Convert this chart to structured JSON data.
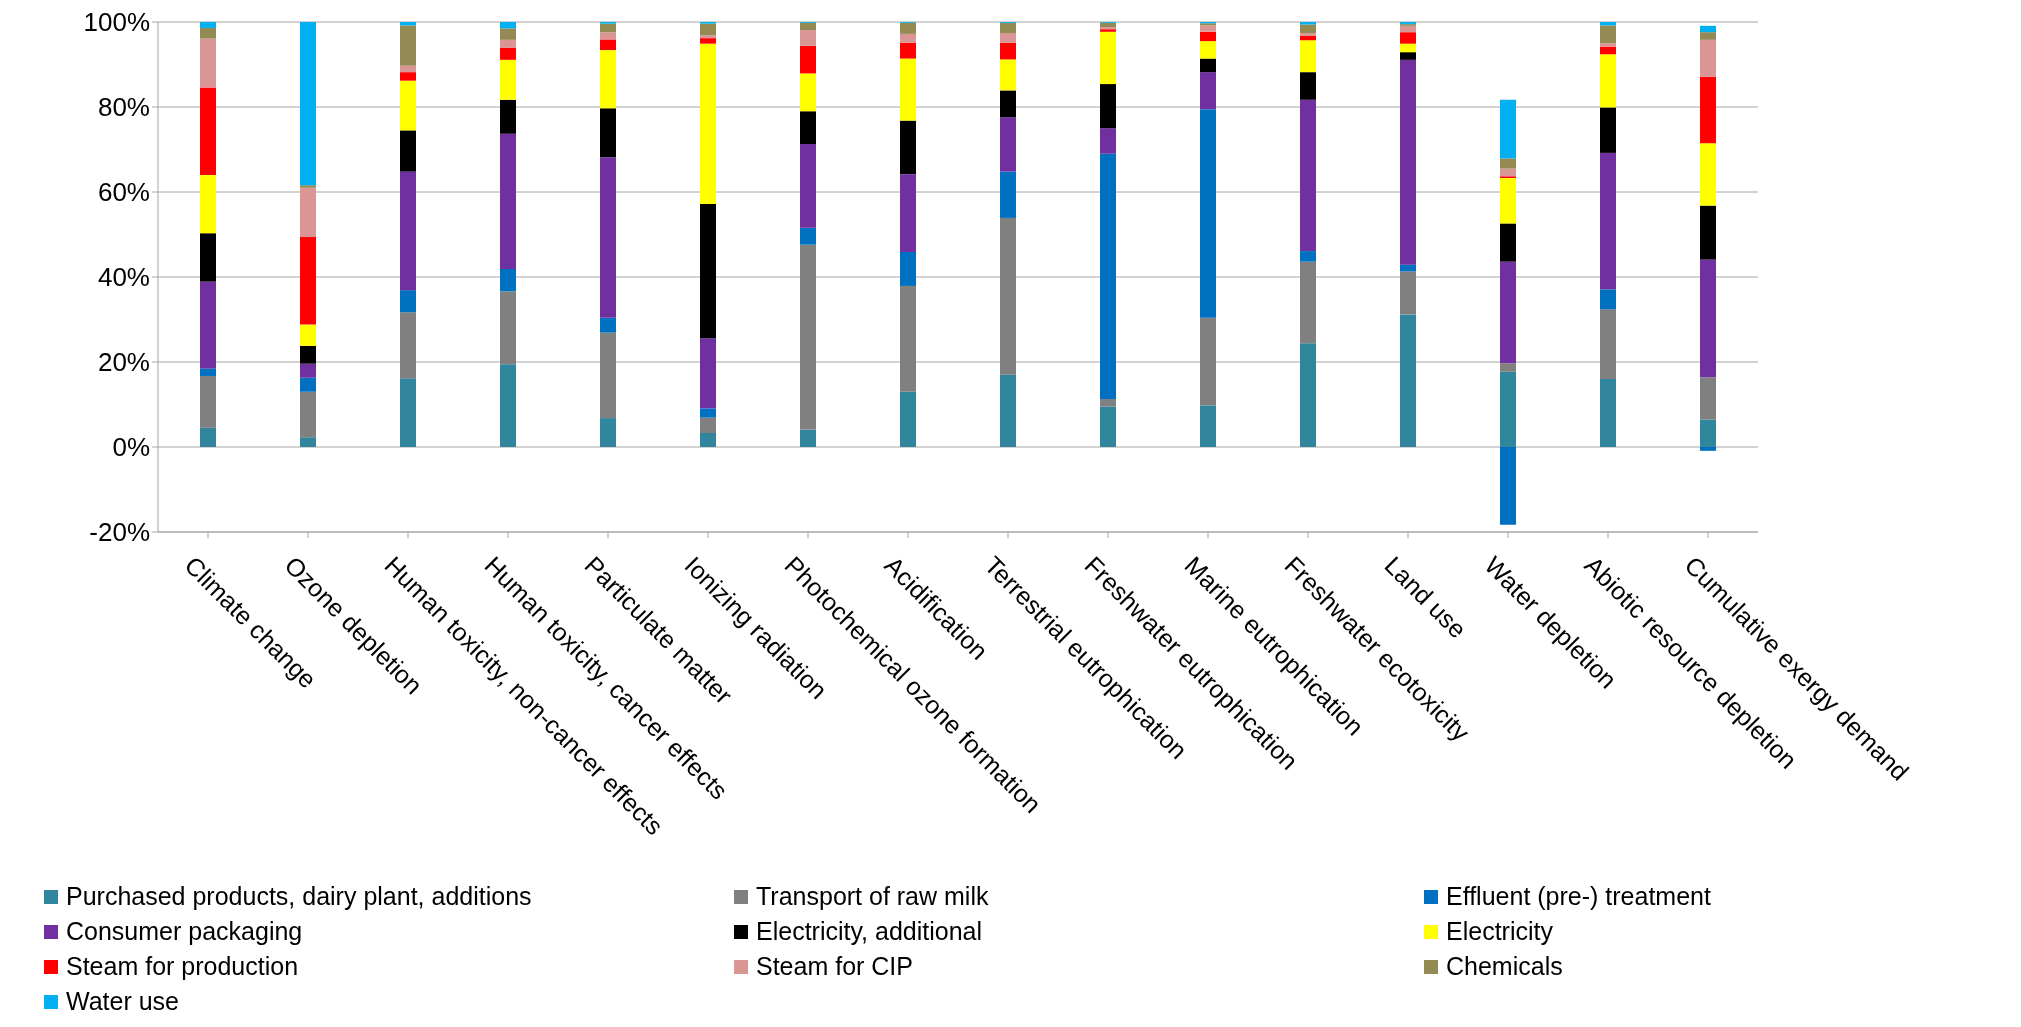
{
  "chart_data": {
    "type": "bar",
    "stacked": true,
    "categories": [
      "Climate change",
      "Ozone depletion",
      "Human toxicity, non-cancer effects",
      "Human toxicity, cancer effects",
      "Particulate matter",
      "Ionizing radiation",
      "Photochemical ozone formation",
      "Acidification",
      "Terrestrial eutrophication",
      "Freshwater eutrophication",
      "Marine eutrophication",
      "Freshwater ecotoxicity",
      "Land use",
      "Water depletion",
      "Abiotic resource depletion",
      "Cumulative exergy demand"
    ],
    "series": [
      {
        "name": "Purchased products, dairy plant, additions",
        "color": "#31859c",
        "values": [
          4.5,
          2.3,
          16.2,
          19.5,
          6.8,
          3.3,
          4.1,
          13.0,
          17.0,
          9.5,
          9.8,
          24.4,
          31.2,
          17.7,
          16.0,
          6.5
        ]
      },
      {
        "name": "Transport of raw milk",
        "color": "#808080",
        "values": [
          12.2,
          10.7,
          15.5,
          17.1,
          20.1,
          3.6,
          43.5,
          24.9,
          36.9,
          1.8,
          20.6,
          19.2,
          10.1,
          2.0,
          16.4,
          9.9
        ]
      },
      {
        "name": "Effluent (pre-) treatment",
        "color": "#0070c0",
        "values": [
          1.8,
          3.3,
          5.2,
          5.3,
          3.5,
          2.2,
          4.0,
          8.0,
          10.9,
          57.7,
          49.1,
          2.5,
          1.6,
          -18.3,
          4.7,
          -0.9
        ]
      },
      {
        "name": "Consumer packaging",
        "color": "#7030a0",
        "values": [
          20.4,
          3.3,
          27.9,
          31.8,
          37.8,
          16.5,
          19.7,
          18.3,
          12.8,
          6.0,
          8.7,
          35.6,
          48.2,
          23.9,
          32.1,
          27.7
        ]
      },
      {
        "name": "Electricity, additional",
        "color": "#000000",
        "values": [
          11.4,
          4.2,
          9.7,
          8.0,
          11.5,
          31.6,
          7.7,
          12.6,
          6.3,
          10.4,
          3.2,
          6.5,
          1.8,
          9.0,
          10.7,
          12.7
        ]
      },
      {
        "name": "Electricity",
        "color": "#ffff00",
        "values": [
          13.7,
          5.0,
          11.7,
          9.4,
          13.7,
          37.7,
          8.9,
          14.6,
          7.3,
          12.3,
          4.1,
          7.5,
          2.0,
          10.7,
          12.5,
          14.7
        ]
      },
      {
        "name": "Steam for production",
        "color": "#ff0000",
        "values": [
          20.6,
          20.6,
          2.0,
          2.8,
          2.5,
          1.3,
          6.5,
          3.7,
          3.9,
          0.6,
          2.2,
          1.0,
          2.7,
          0.4,
          1.8,
          15.6
        ]
      },
      {
        "name": "Steam for CIP",
        "color": "#d99694",
        "values": [
          11.5,
          11.6,
          1.5,
          1.9,
          1.7,
          0.7,
          3.7,
          2.1,
          2.3,
          0.5,
          1.5,
          0.7,
          1.5,
          1.8,
          0.8,
          8.7
        ]
      },
      {
        "name": "Chemicals",
        "color": "#948a54",
        "values": [
          2.5,
          0.6,
          9.5,
          2.7,
          2.0,
          2.7,
          1.7,
          2.6,
          2.4,
          1.0,
          0.5,
          2.0,
          0.4,
          2.4,
          4.2,
          1.8
        ]
      },
      {
        "name": "Water use",
        "color": "#00b0f0",
        "values": [
          1.4,
          38.5,
          0.8,
          1.5,
          0.4,
          0.4,
          0.2,
          0.2,
          0.2,
          0.2,
          0.3,
          0.6,
          0.5,
          13.8,
          0.8,
          1.5
        ]
      }
    ],
    "ylim": [
      -20,
      100
    ],
    "yticks": [
      {
        "value": -20,
        "label": "-20%"
      },
      {
        "value": 0,
        "label": "0%"
      },
      {
        "value": 20,
        "label": "20%"
      },
      {
        "value": 40,
        "label": "40%"
      },
      {
        "value": 60,
        "label": "60%"
      },
      {
        "value": 80,
        "label": "80%"
      },
      {
        "value": 100,
        "label": "100%"
      }
    ],
    "grid": "y",
    "legend": "bottom"
  }
}
